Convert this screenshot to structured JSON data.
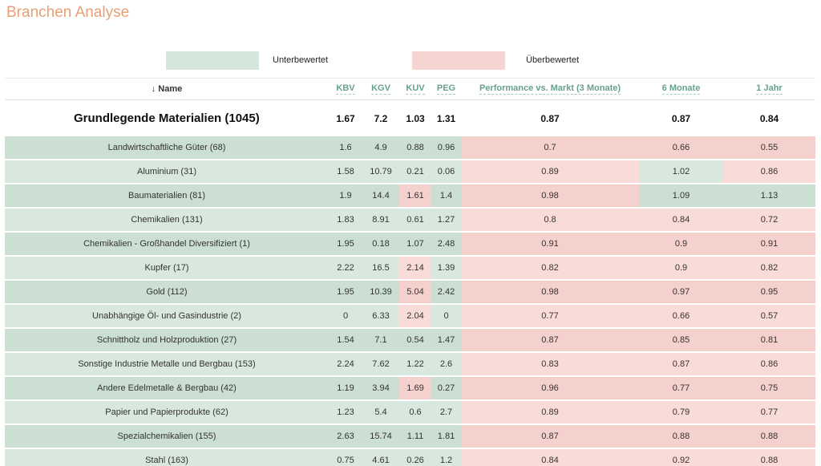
{
  "page": {
    "title": "Branchen Analyse"
  },
  "colors": {
    "title_orange": "#e99f74",
    "header_teal": "#68a08b",
    "legend_green": "#d5e6dc",
    "legend_red": "#f6d4d1",
    "undervalued_dark": "#cbdfd3",
    "undervalued_light": "#d9e8de",
    "overvalued_dark": "#f5d1cd",
    "overvalued_light": "#f9dcd8"
  },
  "legend": {
    "undervalued_label": "Unterbewertet",
    "overvalued_label": "Überbewertet"
  },
  "table": {
    "sort_icon": "↓",
    "columns": [
      {
        "label": "Name"
      },
      {
        "label": "KBV"
      },
      {
        "label": "KGV"
      },
      {
        "label": "KUV"
      },
      {
        "label": "PEG"
      },
      {
        "label": "Performance vs. Markt (3 Monate)"
      },
      {
        "label": "6 Monate"
      },
      {
        "label": "1 Jahr"
      }
    ],
    "summary": {
      "name": "Grundlegende Materialien (1045)",
      "values": [
        "1.67",
        "7.2",
        "1.03",
        "1.31",
        "0.87",
        "0.87",
        "0.84"
      ]
    },
    "rows": [
      {
        "name": "Landwirtschaftliche Güter (68)",
        "values": [
          "1.6",
          "4.9",
          "0.88",
          "0.96",
          "0.7",
          "0.66",
          "0.55"
        ],
        "colors": [
          "g",
          "g",
          "g",
          "g",
          "g",
          "r",
          "r",
          "r"
        ]
      },
      {
        "name": "Aluminium (31)",
        "values": [
          "1.58",
          "10.79",
          "0.21",
          "0.06",
          "0.89",
          "1.02",
          "0.86"
        ],
        "colors": [
          "g",
          "g",
          "g",
          "g",
          "g",
          "r",
          "g",
          "r"
        ]
      },
      {
        "name": "Baumaterialien (81)",
        "values": [
          "1.9",
          "14.4",
          "1.61",
          "1.4",
          "0.98",
          "1.09",
          "1.13"
        ],
        "colors": [
          "g",
          "g",
          "g",
          "r",
          "g",
          "r",
          "g",
          "g"
        ]
      },
      {
        "name": "Chemikalien (131)",
        "values": [
          "1.83",
          "8.91",
          "0.61",
          "1.27",
          "0.8",
          "0.84",
          "0.72"
        ],
        "colors": [
          "g",
          "g",
          "g",
          "g",
          "g",
          "r",
          "r",
          "r"
        ]
      },
      {
        "name": "Chemikalien - Großhandel Diversifiziert (1)",
        "values": [
          "1.95",
          "0.18",
          "1.07",
          "2.48",
          "0.91",
          "0.9",
          "0.91"
        ],
        "colors": [
          "g",
          "g",
          "g",
          "g",
          "g",
          "r",
          "r",
          "r"
        ]
      },
      {
        "name": "Kupfer (17)",
        "values": [
          "2.22",
          "16.5",
          "2.14",
          "1.39",
          "0.82",
          "0.9",
          "0.82"
        ],
        "colors": [
          "g",
          "g",
          "g",
          "r",
          "g",
          "r",
          "r",
          "r"
        ]
      },
      {
        "name": "Gold (112)",
        "values": [
          "1.95",
          "10.39",
          "5.04",
          "2.42",
          "0.98",
          "0.97",
          "0.95"
        ],
        "colors": [
          "g",
          "g",
          "g",
          "r",
          "g",
          "r",
          "r",
          "r"
        ]
      },
      {
        "name": "Unabhängige Öl- und Gasindustrie (2)",
        "values": [
          "0",
          "6.33",
          "2.04",
          "0",
          "0.77",
          "0.66",
          "0.57"
        ],
        "colors": [
          "g",
          "g",
          "g",
          "r",
          "g",
          "r",
          "r",
          "r"
        ]
      },
      {
        "name": "Schnittholz und Holzproduktion (27)",
        "values": [
          "1.54",
          "7.1",
          "0.54",
          "1.47",
          "0.87",
          "0.85",
          "0.81"
        ],
        "colors": [
          "g",
          "g",
          "g",
          "g",
          "g",
          "r",
          "r",
          "r"
        ]
      },
      {
        "name": "Sonstige Industrie Metalle und Bergbau (153)",
        "values": [
          "2.24",
          "7.62",
          "1.22",
          "2.6",
          "0.83",
          "0.87",
          "0.86"
        ],
        "colors": [
          "g",
          "g",
          "g",
          "g",
          "g",
          "r",
          "r",
          "r"
        ]
      },
      {
        "name": "Andere Edelmetalle & Bergbau (42)",
        "values": [
          "1.19",
          "3.94",
          "1.69",
          "0.27",
          "0.96",
          "0.77",
          "0.75"
        ],
        "colors": [
          "g",
          "g",
          "g",
          "r",
          "g",
          "r",
          "r",
          "r"
        ]
      },
      {
        "name": "Papier und Papierprodukte (62)",
        "values": [
          "1.23",
          "5.4",
          "0.6",
          "2.7",
          "0.89",
          "0.79",
          "0.77"
        ],
        "colors": [
          "g",
          "g",
          "g",
          "g",
          "g",
          "r",
          "r",
          "r"
        ]
      },
      {
        "name": "Spezialchemikalien (155)",
        "values": [
          "2.63",
          "15.74",
          "1.11",
          "1.81",
          "0.87",
          "0.88",
          "0.88"
        ],
        "colors": [
          "g",
          "g",
          "g",
          "g",
          "g",
          "r",
          "r",
          "r"
        ]
      },
      {
        "name": "Stahl (163)",
        "values": [
          "0.75",
          "4.61",
          "0.26",
          "1.2",
          "0.84",
          "0.92",
          "0.88"
        ],
        "colors": [
          "g",
          "g",
          "g",
          "g",
          "g",
          "r",
          "r",
          "r"
        ]
      }
    ]
  }
}
